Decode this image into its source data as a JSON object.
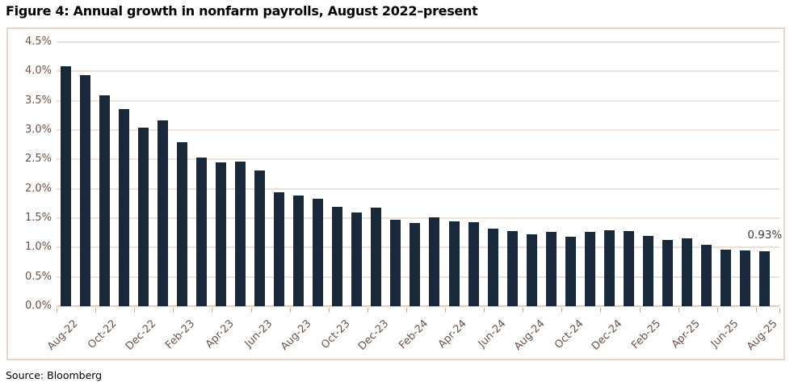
{
  "title": "Figure 4: Annual growth in nonfarm payrolls, August 2022–present",
  "source": "Source: Bloomberg",
  "colors": {
    "bar": "#18293a",
    "gridline": "#f0e1d7",
    "axis_line": "#e6cfc0",
    "frame_border": "#e9d5c9",
    "axis_text": "#6f5145",
    "tick": "#cfa996",
    "title_text": "#000000",
    "data_label_text": "#443933",
    "source_text": "#000000"
  },
  "chart_data": {
    "type": "bar",
    "title": "Figure 4: Annual growth in nonfarm payrolls, August 2022–present",
    "xlabel": "",
    "ylabel": "",
    "ylim": [
      0,
      4.5
    ],
    "ytick_step": 0.5,
    "grid": true,
    "legend": "none",
    "categories": [
      "Aug-22",
      "Sep-22",
      "Oct-22",
      "Nov-22",
      "Dec-22",
      "Jan-23",
      "Feb-23",
      "Mar-23",
      "Apr-23",
      "May-23",
      "Jun-23",
      "Jul-23",
      "Aug-23",
      "Sep-23",
      "Oct-23",
      "Nov-23",
      "Dec-23",
      "Jan-24",
      "Feb-24",
      "Mar-24",
      "Apr-24",
      "May-24",
      "Jun-24",
      "Jul-24",
      "Aug-24",
      "Sep-24",
      "Oct-24",
      "Nov-24",
      "Dec-24",
      "Jan-25",
      "Feb-25",
      "Mar-25",
      "Apr-25",
      "May-25",
      "Jun-25",
      "Jul-25",
      "Aug-25"
    ],
    "values": [
      4.09,
      3.93,
      3.59,
      3.36,
      3.04,
      3.17,
      2.79,
      2.53,
      2.45,
      2.46,
      2.31,
      1.94,
      1.89,
      1.83,
      1.69,
      1.6,
      1.68,
      1.47,
      1.42,
      1.52,
      1.44,
      1.43,
      1.32,
      1.28,
      1.22,
      1.27,
      1.19,
      1.26,
      1.29,
      1.28,
      1.2,
      1.13,
      1.15,
      1.05,
      0.96,
      0.95,
      0.93
    ],
    "ytick_labels": [
      "0.0%",
      "0.5%",
      "1.0%",
      "1.5%",
      "2.0%",
      "2.5%",
      "3.0%",
      "3.5%",
      "4.0%",
      "4.5%"
    ],
    "xtick_labels_shown": [
      "Aug-22",
      "Oct-22",
      "Dec-22",
      "Feb-23",
      "Apr-23",
      "Jun-23",
      "Aug-23",
      "Oct-23",
      "Dec-23",
      "Feb-24",
      "Apr-24",
      "Jun-24",
      "Aug-24",
      "Oct-24",
      "Dec-24",
      "Feb-25",
      "Apr-25",
      "Jun-25",
      "Aug-25"
    ],
    "last_point_label": "0.93%"
  }
}
